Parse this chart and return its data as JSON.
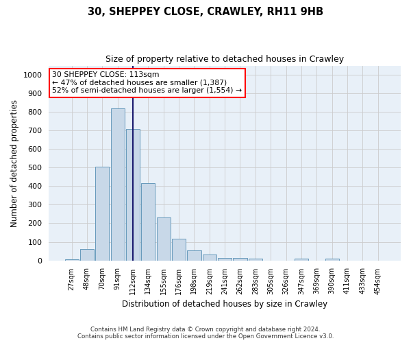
{
  "title_line1": "30, SHEPPEY CLOSE, CRAWLEY, RH11 9HB",
  "title_line2": "Size of property relative to detached houses in Crawley",
  "xlabel": "Distribution of detached houses by size in Crawley",
  "ylabel": "Number of detached properties",
  "categories": [
    "27sqm",
    "48sqm",
    "70sqm",
    "91sqm",
    "112sqm",
    "134sqm",
    "155sqm",
    "176sqm",
    "198sqm",
    "219sqm",
    "241sqm",
    "262sqm",
    "283sqm",
    "305sqm",
    "326sqm",
    "347sqm",
    "369sqm",
    "390sqm",
    "411sqm",
    "433sqm",
    "454sqm"
  ],
  "values": [
    5,
    60,
    505,
    820,
    708,
    417,
    230,
    117,
    55,
    32,
    12,
    12,
    8,
    0,
    0,
    8,
    0,
    8,
    0,
    0,
    0
  ],
  "bar_color": "#c8d8e8",
  "bar_edge_color": "#6699bb",
  "highlight_index": 4,
  "highlight_line_color": "#1a1a6e",
  "annotation_line1": "30 SHEPPEY CLOSE: 113sqm",
  "annotation_line2": "← 47% of detached houses are smaller (1,387)",
  "annotation_line3": "52% of semi-detached houses are larger (1,554) →",
  "annotation_box_color": "white",
  "annotation_box_edge_color": "red",
  "ylim": [
    0,
    1050
  ],
  "yticks": [
    0,
    100,
    200,
    300,
    400,
    500,
    600,
    700,
    800,
    900,
    1000
  ],
  "footer_line1": "Contains HM Land Registry data © Crown copyright and database right 2024.",
  "footer_line2": "Contains public sector information licensed under the Open Government Licence v3.0.",
  "bg_color": "#ffffff",
  "plot_bg_color": "#e8f0f8",
  "grid_color": "#cccccc"
}
